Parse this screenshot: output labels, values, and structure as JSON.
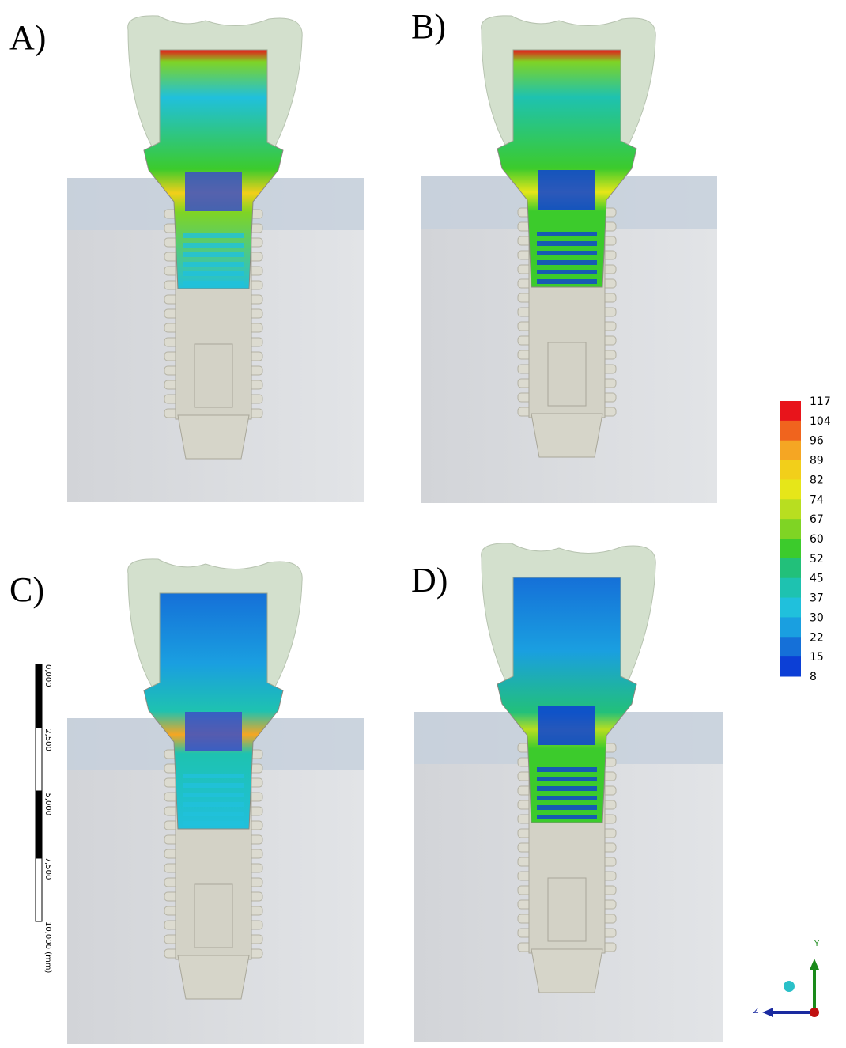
{
  "panels": [
    {
      "label": "A)"
    },
    {
      "label": "B)"
    },
    {
      "label": "C)"
    },
    {
      "label": "D)"
    }
  ],
  "legend": {
    "values": [
      "117",
      "104",
      "96",
      "89",
      "82",
      "74",
      "67",
      "60",
      "52",
      "45",
      "37",
      "30",
      "22",
      "15",
      "8"
    ],
    "colors": [
      "#e8141b",
      "#f0641e",
      "#f5a623",
      "#f2cf1a",
      "#e6e619",
      "#b8de20",
      "#7fd424",
      "#3ccb2c",
      "#22c07a",
      "#1ec2b0",
      "#20c0dc",
      "#1a9fe0",
      "#1570d8",
      "#0c3fd6"
    ]
  },
  "scale_bar": {
    "labels": [
      "0,000",
      "2,500",
      "5,000",
      "7,500",
      "10,000 (mm)"
    ]
  },
  "triad": {
    "y": "Y",
    "z": "Z"
  }
}
